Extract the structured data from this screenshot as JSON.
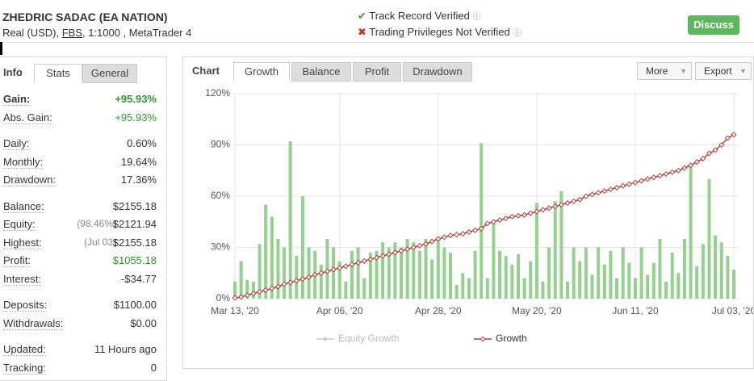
{
  "header": {
    "name": "ZHEDRIC SADAC (EA NATION)",
    "account_prefix": "Real (USD), ",
    "broker": "FBS",
    "account_suffix": ", 1:1000 , MetaTrader 4",
    "verifications": [
      "Track Record Verified",
      "Trading Privileges Not Verified"
    ],
    "button": "Discuss"
  },
  "info": {
    "tabs": [
      "Info",
      "Stats",
      "General"
    ],
    "groups": [
      [
        {
          "label": "Gain:",
          "value": "+95.93%"
        },
        {
          "label": "Abs. Gain:",
          "value": "+95.93%"
        }
      ],
      [
        {
          "label": "Daily:",
          "value": "0.60%"
        },
        {
          "label": "Monthly:",
          "value": "19.64%"
        },
        {
          "label": "Drawdown:",
          "value": "17.36%"
        }
      ],
      [
        {
          "label": "Balance:",
          "value": "$2155.18"
        },
        {
          "label": "Equity:",
          "note": "(98.46%)",
          "value": "$2121.94"
        },
        {
          "label": "Highest:",
          "note": "(Jul 03)",
          "value": "$2155.18"
        },
        {
          "label": "Profit:",
          "value": "$1055.18"
        },
        {
          "label": "Interest:",
          "value": "-$34.77"
        }
      ],
      [
        {
          "label": "Deposits:",
          "value": "$1100.00"
        },
        {
          "label": "Withdrawals:",
          "value": "$0.00"
        }
      ],
      [
        {
          "label": "Updated:",
          "value": "11 Hours ago"
        },
        {
          "label": "Tracking:",
          "value": "0"
        }
      ]
    ]
  },
  "chart_panel": {
    "tabs": [
      "Chart",
      "Growth",
      "Balance",
      "Profit",
      "Drawdown"
    ],
    "buttons": [
      "More",
      "Export"
    ]
  },
  "chart_data": {
    "type": "bar-line",
    "categories": [
      "Mar 13, '20",
      null,
      null,
      null,
      null,
      null,
      null,
      null,
      null,
      null,
      null,
      null,
      null,
      null,
      null,
      null,
      null,
      "Apr 06, '20",
      null,
      null,
      null,
      null,
      null,
      null,
      null,
      null,
      null,
      null,
      null,
      null,
      null,
      null,
      null,
      "Apr 28, '20",
      null,
      null,
      null,
      null,
      null,
      null,
      null,
      null,
      null,
      null,
      null,
      null,
      null,
      null,
      null,
      "May 20, '20",
      null,
      null,
      null,
      null,
      null,
      null,
      null,
      null,
      null,
      null,
      null,
      null,
      null,
      null,
      null,
      "Jun 11, '20",
      null,
      null,
      null,
      null,
      null,
      null,
      null,
      null,
      null,
      null,
      null,
      null,
      null,
      null,
      null,
      "Jul 03, '20"
    ],
    "ylim": [
      0,
      120
    ],
    "yticks": [
      {
        "value": 0,
        "label": "0%"
      },
      {
        "value": 30,
        "label": "30%"
      },
      {
        "value": 60,
        "label": "60%"
      },
      {
        "value": 90,
        "label": "90%"
      },
      {
        "value": 120,
        "label": "120%"
      }
    ],
    "grid": true,
    "bars": {
      "color": "#94d18e",
      "values": [
        10,
        22,
        11,
        10,
        32,
        55,
        48,
        35,
        30,
        92,
        25,
        60,
        30,
        28,
        20,
        35,
        30,
        22,
        10,
        28,
        30,
        12,
        27,
        28,
        33,
        30,
        33,
        30,
        35,
        33,
        28,
        35,
        23,
        35,
        30,
        27,
        8,
        15,
        12,
        28,
        91,
        12,
        45,
        28,
        25,
        20,
        26,
        12,
        22,
        56,
        10,
        30,
        57,
        63,
        10,
        30,
        22,
        30,
        14,
        30,
        20,
        28,
        12,
        30,
        21,
        12,
        30,
        14,
        21,
        35,
        10,
        27,
        15,
        35,
        77,
        19,
        32,
        70,
        37,
        33,
        25,
        17
      ]
    },
    "series": [
      {
        "name": "Growth",
        "color": "#b5403a",
        "values": [
          0.5,
          1,
          2,
          3,
          4,
          5,
          6,
          7,
          8.5,
          9.5,
          10.5,
          11.5,
          12.5,
          14,
          15,
          16,
          17,
          18,
          19,
          20,
          21,
          22,
          23,
          24,
          25,
          26,
          27,
          28,
          29,
          30,
          31,
          32,
          33.5,
          35,
          36,
          37,
          37.5,
          38,
          39,
          40,
          41,
          44,
          45,
          46,
          47,
          48,
          48.5,
          49,
          50,
          51,
          52,
          53,
          54,
          55,
          56,
          57,
          58,
          60,
          61,
          62,
          63,
          64,
          65,
          66,
          67,
          68,
          69,
          70,
          71,
          72,
          73,
          74,
          75,
          76.5,
          78,
          80,
          82,
          85,
          87,
          90,
          94,
          96
        ]
      }
    ],
    "hidden_series": [
      {
        "name": "Equity Growth",
        "color": "#c8c8c8"
      }
    ]
  }
}
